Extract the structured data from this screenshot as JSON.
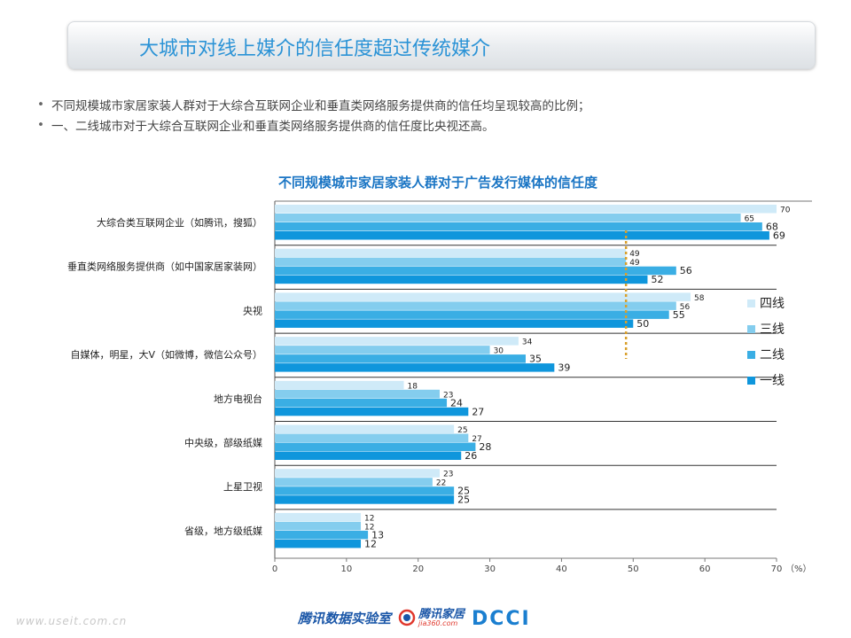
{
  "page": {
    "title": "大城市对线上媒介的信任度超过传统媒介",
    "bullets": [
      "不同规模城市家居家装人群对于大综合互联网企业和垂直类网络服务提供商的信任均呈现较高的比例；",
      "一、二线城市对于大综合互联网企业和垂直类网络服务提供商的信任度比央视还高。"
    ]
  },
  "chart_data": {
    "type": "bar",
    "orientation": "horizontal",
    "title": "不同规模城市家居家装人群对于广告发行媒体的信任度",
    "unit_label": "（%）",
    "categories": [
      "大综合类互联网企业（如腾讯，搜狐）",
      "垂直类网络服务提供商（如中国家居家装网）",
      "央视",
      "自媒体，明星，大V（如微博，微信公众号）",
      "地方电视台",
      "中央级，部级纸媒",
      "上星卫视",
      "省级，地方级纸媒"
    ],
    "series": [
      {
        "name": "四线",
        "color": "#cfeaf8",
        "values": [
          70,
          49,
          58,
          34,
          18,
          25,
          23,
          12
        ]
      },
      {
        "name": "三线",
        "color": "#84cdee",
        "values": [
          65,
          49,
          56,
          30,
          23,
          27,
          22,
          12
        ]
      },
      {
        "name": "二线",
        "color": "#3aaee4",
        "values": [
          68,
          56,
          55,
          35,
          24,
          28,
          25,
          13
        ]
      },
      {
        "name": "一线",
        "color": "#0f96dc",
        "values": [
          69,
          52,
          50,
          39,
          27,
          26,
          25,
          12
        ]
      }
    ],
    "xlim": [
      0,
      70
    ],
    "xticks": [
      0,
      10,
      20,
      30,
      40,
      50,
      60,
      70
    ],
    "reference_line": {
      "x": 49,
      "color": "#d9a02c",
      "style": "dotted"
    },
    "legend_position": "right"
  },
  "footer": {
    "url": "www.useit.com.cn",
    "logo_lab": "腾讯数据实验室",
    "logo_jiaju": "腾讯家居",
    "logo_jiaju_sub": "jia360.com",
    "logo_dcci": "DCCI"
  }
}
